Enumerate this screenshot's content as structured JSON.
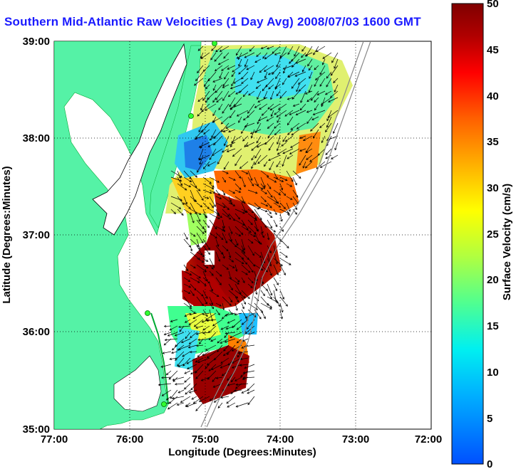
{
  "title": "Southern Mid-Atlantic Raw Velocities (1 Day Avg) 2008/07/03 1600 GMT",
  "chart_data": {
    "type": "heatmap",
    "xlabel": "Longitude (Degrees:Minutes)",
    "ylabel": "Latitude (Degrees:Minutes)",
    "x_ticks": [
      "77:00",
      "76:00",
      "75:00",
      "74:00",
      "73:00",
      "72:00"
    ],
    "y_ticks": [
      "39:00",
      "38:00",
      "37:00",
      "36:00",
      "35:00"
    ],
    "xlim": [
      -77,
      -72
    ],
    "ylim": [
      35,
      39
    ],
    "grid": true,
    "colorbar": {
      "label": "Surface Velocity (cm/s)",
      "range": [
        0,
        50
      ],
      "ticks": [
        "50",
        "45",
        "40",
        "35",
        "30",
        "25",
        "20",
        "15",
        "10",
        "5",
        "0"
      ]
    },
    "colors": {
      "land": "#55f2a6",
      "title": "#1a1aff"
    }
  }
}
